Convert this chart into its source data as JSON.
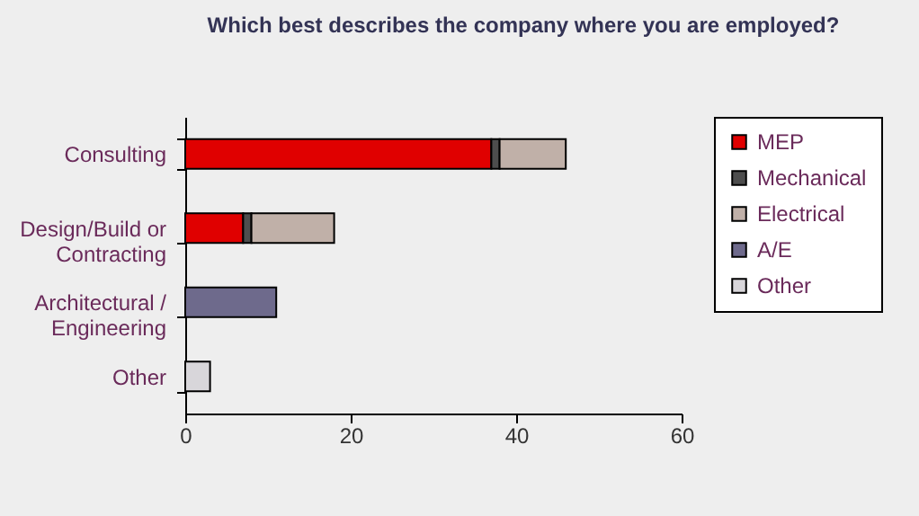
{
  "chart_data": {
    "type": "bar",
    "orientation": "horizontal",
    "stacked": true,
    "title": "Which best describes the company where you are employed?",
    "categories": [
      "Consulting",
      "Design/Build or Contracting",
      "Architectural / Engineering",
      "Other"
    ],
    "series": [
      {
        "name": "MEP",
        "color": "#e00000",
        "values": [
          37,
          7,
          null,
          null
        ]
      },
      {
        "name": "Mechanical",
        "color": "#4d4d4d",
        "values": [
          1,
          1,
          null,
          null
        ]
      },
      {
        "name": "Electrical",
        "color": "#c0b0a8",
        "values": [
          8,
          10,
          null,
          null
        ]
      },
      {
        "name": "A/E",
        "color": "#6e6a8c",
        "values": [
          null,
          null,
          11,
          null
        ]
      },
      {
        "name": "Other",
        "color": "#d8d6da",
        "values": [
          null,
          null,
          null,
          3
        ]
      }
    ],
    "xlim": [
      0,
      60
    ],
    "xticks": [
      0,
      20,
      40,
      60
    ],
    "grid": false,
    "legend": "right"
  }
}
